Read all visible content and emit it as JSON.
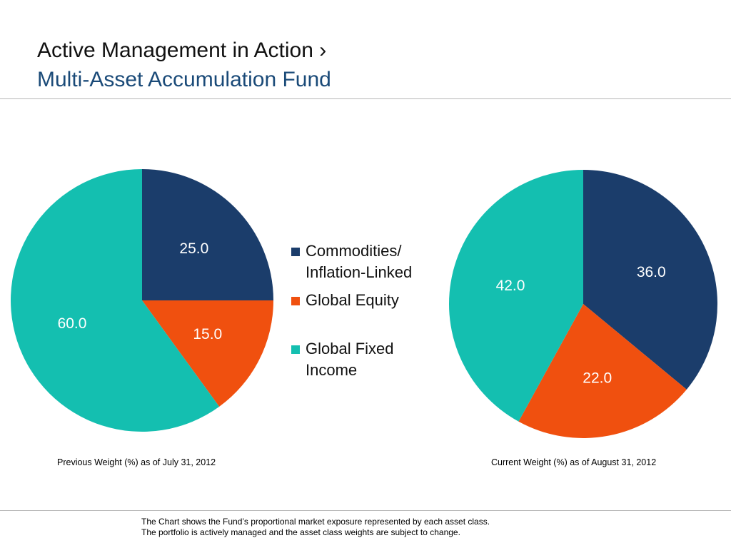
{
  "header": {
    "title": "Active Management in Action ›",
    "subtitle": "Multi-Asset Accumulation Fund"
  },
  "legend": {
    "items": [
      {
        "lines": [
          "Commodities/",
          "Inflation-Linked"
        ],
        "color": "#1b3d6b"
      },
      {
        "lines": [
          "Global Equity"
        ],
        "color": "#f0500f"
      },
      {
        "lines": [
          "Global Fixed",
          "Income"
        ],
        "color": "#14bfb0"
      }
    ]
  },
  "chart_data": [
    {
      "type": "pie",
      "title": "Previous Weight (%) as of July 31, 2012",
      "categories": [
        "Commodities/Inflation-Linked",
        "Global Equity",
        "Global Fixed Income"
      ],
      "values": [
        25.0,
        15.0,
        60.0
      ],
      "labels": [
        "25.0",
        "15.0",
        "60.0"
      ],
      "colors": [
        "#1b3d6b",
        "#f0500f",
        "#14bfb0"
      ]
    },
    {
      "type": "pie",
      "title": "Current Weight (%) as of August 31, 2012",
      "categories": [
        "Commodities/Inflation-Linked",
        "Global Equity",
        "Global Fixed Income"
      ],
      "values": [
        36.0,
        22.0,
        42.0
      ],
      "labels": [
        "36.0",
        "22.0",
        "42.0"
      ],
      "colors": [
        "#1b3d6b",
        "#f0500f",
        "#14bfb0"
      ]
    }
  ],
  "footnote": {
    "line1": "The Chart shows the Fund’s proportional market exposure represented by each asset class.",
    "line2": "The portfolio is actively managed and the asset class weights are subject to change."
  }
}
